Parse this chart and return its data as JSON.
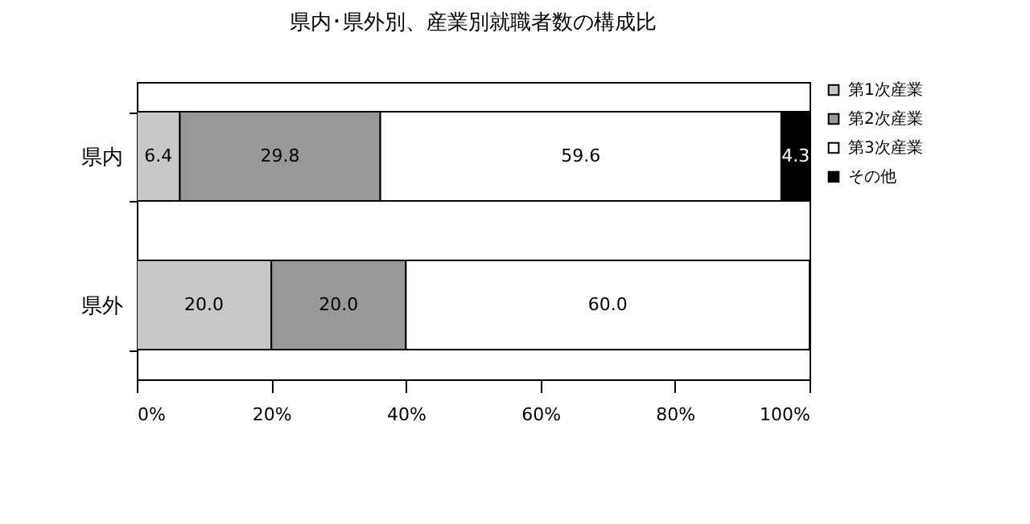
{
  "chart_data": {
    "type": "bar",
    "orientation": "horizontal",
    "stacked": true,
    "title": "県内･県外別、産業別就職者数の構成比",
    "categories": [
      "県内",
      "県外"
    ],
    "series": [
      {
        "name": "第1次産業",
        "color": "#c8c8c8",
        "values": [
          6.4,
          20.0
        ],
        "value_labels": [
          "6.4",
          "20.0"
        ]
      },
      {
        "name": "第2次産業",
        "color": "#989898",
        "values": [
          29.8,
          20.0
        ],
        "value_labels": [
          "29.8",
          "20.0"
        ]
      },
      {
        "name": "第3次産業",
        "color": "#ffffff",
        "values": [
          59.6,
          60.0
        ],
        "value_labels": [
          "59.6",
          "60.0"
        ]
      },
      {
        "name": "その他",
        "color": "#000000",
        "values": [
          4.3,
          null
        ],
        "value_labels": [
          "4.3",
          null
        ]
      }
    ],
    "xlim": [
      0,
      100
    ],
    "xticks": [
      {
        "value": 0,
        "label": "0%"
      },
      {
        "value": 20,
        "label": "20%"
      },
      {
        "value": 40,
        "label": "40%"
      },
      {
        "value": 60,
        "label": "60%"
      },
      {
        "value": 80,
        "label": "80%"
      },
      {
        "value": 100,
        "label": "100%"
      }
    ],
    "legend": "right",
    "grid": false
  }
}
